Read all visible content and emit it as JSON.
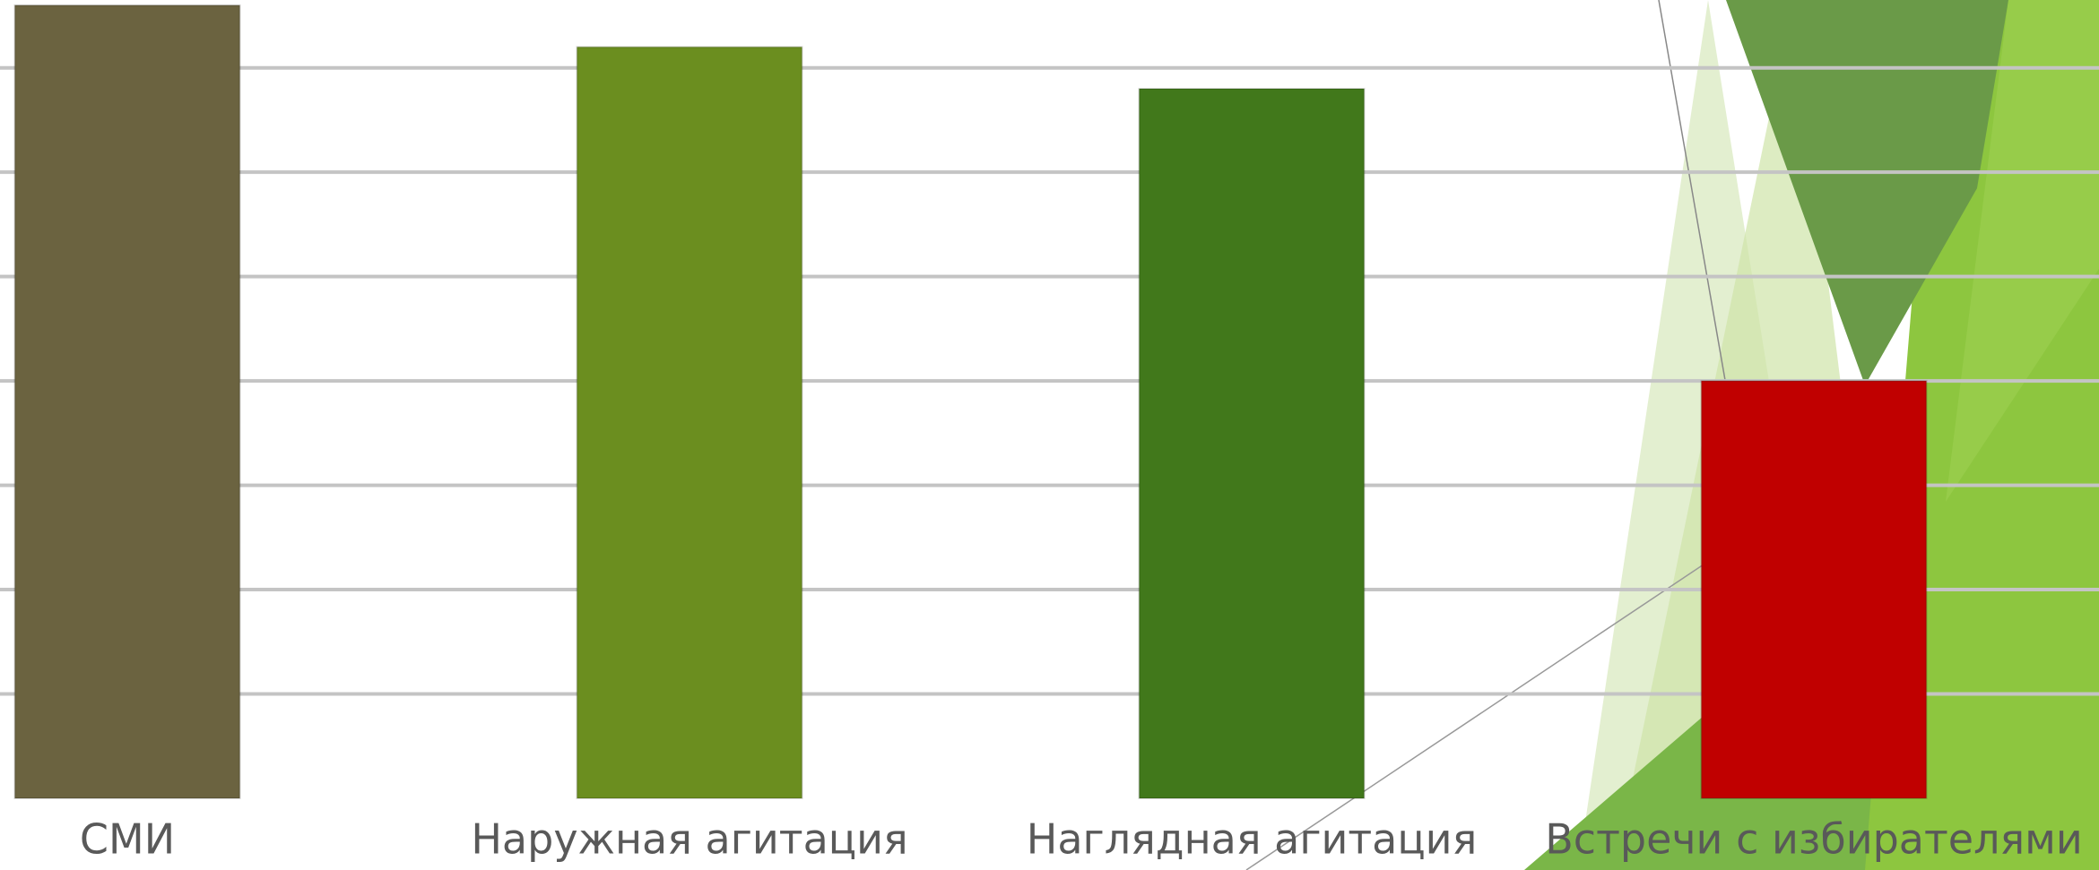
{
  "chart_data": {
    "type": "bar",
    "categories": [
      "СМИ",
      "Наружная агитация",
      "Наглядная агитация",
      "Встречи с избирателями"
    ],
    "series": [
      {
        "values": [
          7.6,
          7.2,
          6.8,
          4.0
        ],
        "colors": [
          "#6b6340",
          "#6b8e1f",
          "#41781b",
          "#c00000"
        ]
      }
    ],
    "ylim": [
      0,
      7.65
    ],
    "yticks": [
      1,
      2,
      3,
      4,
      5,
      6,
      7
    ],
    "grid": true
  }
}
